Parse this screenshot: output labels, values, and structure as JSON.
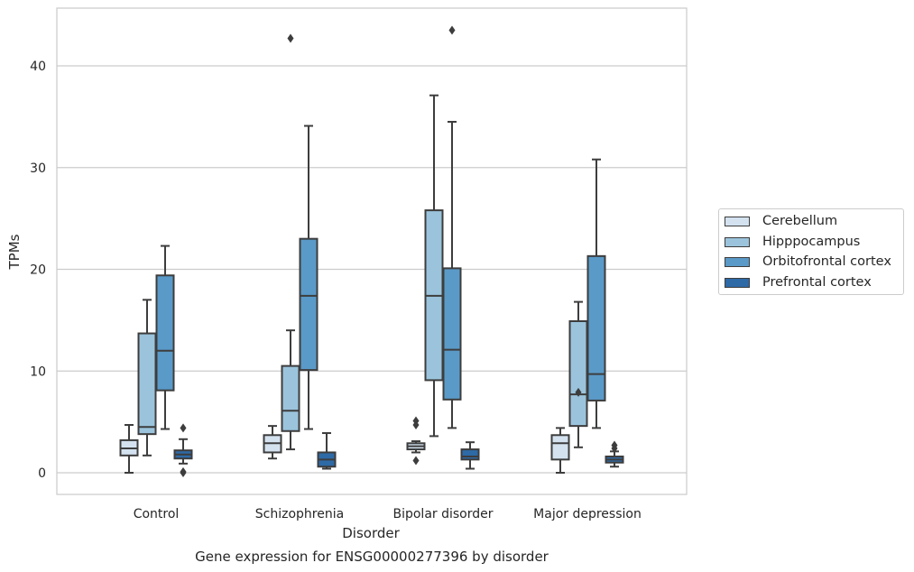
{
  "chart_data": {
    "type": "box",
    "title": "Gene expression for ENSG00000277396 by disorder",
    "xlabel": "Disorder",
    "ylabel": "TPMs",
    "ylim": [
      -2,
      46
    ],
    "yticks": [
      0,
      10,
      20,
      30,
      40
    ],
    "grid": "horizontal",
    "legend_position": "right",
    "categories": [
      "Control",
      "Schizophrenia",
      "Bipolar disorder",
      "Major depression"
    ],
    "series": [
      {
        "name": "Cerebellum",
        "color": "#d4e2f0",
        "boxes": [
          {
            "whisker_low": 0.0,
            "q1": 1.7,
            "median": 2.4,
            "q3": 3.2,
            "whisker_high": 4.7,
            "outliers": []
          },
          {
            "whisker_low": 1.4,
            "q1": 2.0,
            "median": 2.9,
            "q3": 3.7,
            "whisker_high": 4.6,
            "outliers": []
          },
          {
            "whisker_low": 2.0,
            "q1": 2.3,
            "median": 2.6,
            "q3": 2.9,
            "whisker_high": 3.1,
            "outliers": [
              5.1,
              4.7,
              1.2
            ]
          },
          {
            "whisker_low": 0.0,
            "q1": 1.3,
            "median": 2.9,
            "q3": 3.7,
            "whisker_high": 4.4,
            "outliers": []
          }
        ]
      },
      {
        "name": "Hipppocampus",
        "color": "#9bc4dc",
        "boxes": [
          {
            "whisker_low": 1.7,
            "q1": 3.8,
            "median": 4.5,
            "q3": 13.7,
            "whisker_high": 17.0,
            "outliers": []
          },
          {
            "whisker_low": 2.3,
            "q1": 4.1,
            "median": 6.1,
            "q3": 10.5,
            "whisker_high": 14.0,
            "outliers": [
              42.7
            ]
          },
          {
            "whisker_low": 3.6,
            "q1": 9.1,
            "median": 17.4,
            "q3": 25.8,
            "whisker_high": 37.1,
            "outliers": []
          },
          {
            "whisker_low": 2.5,
            "q1": 4.6,
            "median": 7.7,
            "q3": 14.9,
            "whisker_high": 16.8,
            "outliers": [
              7.9
            ]
          }
        ]
      },
      {
        "name": "Orbitofrontal cortex",
        "color": "#5a9ac8",
        "boxes": [
          {
            "whisker_low": 4.3,
            "q1": 8.1,
            "median": 12.0,
            "q3": 19.4,
            "whisker_high": 22.3,
            "outliers": []
          },
          {
            "whisker_low": 4.3,
            "q1": 10.1,
            "median": 17.4,
            "q3": 23.0,
            "whisker_high": 34.1,
            "outliers": []
          },
          {
            "whisker_low": 4.4,
            "q1": 7.2,
            "median": 12.1,
            "q3": 20.1,
            "whisker_high": 34.5,
            "outliers": [
              43.5
            ]
          },
          {
            "whisker_low": 4.4,
            "q1": 7.1,
            "median": 9.7,
            "q3": 21.3,
            "whisker_high": 30.8,
            "outliers": []
          }
        ]
      },
      {
        "name": "Prefrontal cortex",
        "color": "#2e6aa6",
        "boxes": [
          {
            "whisker_low": 0.9,
            "q1": 1.4,
            "median": 1.8,
            "q3": 2.2,
            "whisker_high": 3.3,
            "outliers": [
              4.4,
              0.1,
              0.0
            ]
          },
          {
            "whisker_low": 0.4,
            "q1": 0.6,
            "median": 1.3,
            "q3": 2.0,
            "whisker_high": 3.9,
            "outliers": []
          },
          {
            "whisker_low": 0.4,
            "q1": 1.3,
            "median": 1.6,
            "q3": 2.3,
            "whisker_high": 3.0,
            "outliers": []
          },
          {
            "whisker_low": 0.6,
            "q1": 1.0,
            "median": 1.3,
            "q3": 1.6,
            "whisker_high": 2.1,
            "outliers": [
              2.7,
              2.4
            ]
          }
        ]
      }
    ]
  }
}
